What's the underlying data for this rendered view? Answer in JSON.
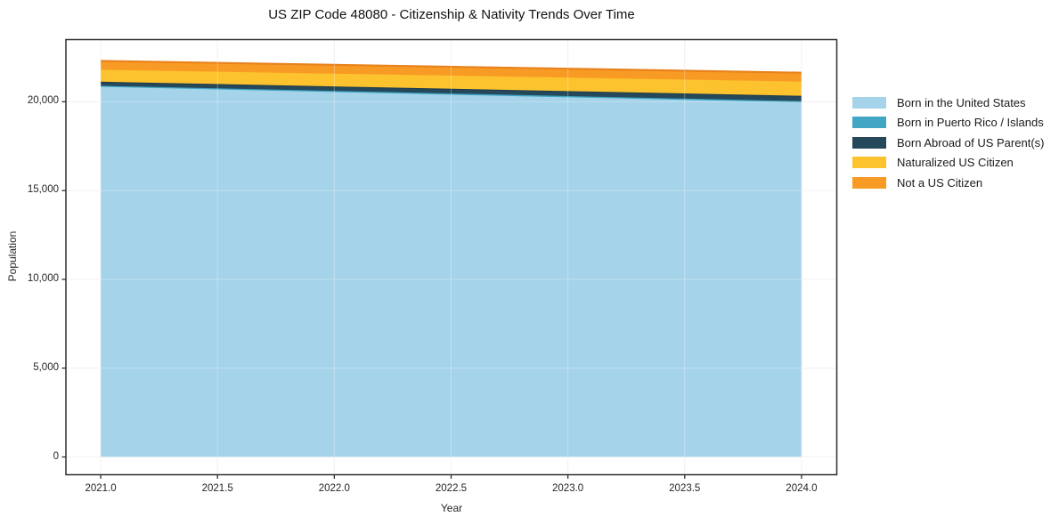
{
  "chart_data": {
    "type": "area",
    "stacked": true,
    "title": "US ZIP Code 48080 - Citizenship & Nativity Trends Over Time",
    "xlabel": "Year",
    "ylabel": "Population",
    "x": [
      2021,
      2022,
      2023,
      2024
    ],
    "series": [
      {
        "name": "Born in the United States",
        "color": "#a5d3e9",
        "edge_color": "#a5d3e9",
        "values": [
          20840,
          20545,
          20250,
          19960
        ]
      },
      {
        "name": "Born in Puerto Rico / Islands",
        "color": "#41a6c4",
        "edge_color": "#41a6c4",
        "values": [
          60,
          65,
          70,
          75
        ]
      },
      {
        "name": "Born Abroad of US Parent(s)",
        "color": "#25495b",
        "edge_color": "#1d3d4d",
        "values": [
          230,
          255,
          280,
          300
        ]
      },
      {
        "name": "Naturalized US Citizen",
        "color": "#fdc32e",
        "edge_color": "#fdc32e",
        "values": [
          670,
          715,
          760,
          800
        ]
      },
      {
        "name": "Not a US Citizen",
        "color": "#f89b25",
        "edge_color": "#e8821c",
        "values": [
          500,
          500,
          500,
          500
        ]
      }
    ],
    "xticks": [
      {
        "value": 2021.0,
        "label": "2021.0"
      },
      {
        "value": 2021.5,
        "label": "2021.5"
      },
      {
        "value": 2022.0,
        "label": "2022.0"
      },
      {
        "value": 2022.5,
        "label": "2022.5"
      },
      {
        "value": 2023.0,
        "label": "2023.0"
      },
      {
        "value": 2023.5,
        "label": "2023.5"
      },
      {
        "value": 2024.0,
        "label": "2024.0"
      }
    ],
    "yticks": [
      {
        "value": 0,
        "label": "0"
      },
      {
        "value": 5000,
        "label": "5,000"
      },
      {
        "value": 10000,
        "label": "10,000"
      },
      {
        "value": 15000,
        "label": "15,000"
      },
      {
        "value": 20000,
        "label": "20,000"
      }
    ],
    "xlim": [
      2020.851,
      2024.151
    ],
    "ylim": [
      -1000,
      23500
    ],
    "grid": true,
    "legend_position": "right",
    "colors": {
      "spine": "#2e2e2e",
      "grid": "#ececec",
      "grid_overlay": "rgba(255,255,255,0.30)",
      "tick": "#2e2e2e",
      "background": "#ffffff"
    }
  }
}
